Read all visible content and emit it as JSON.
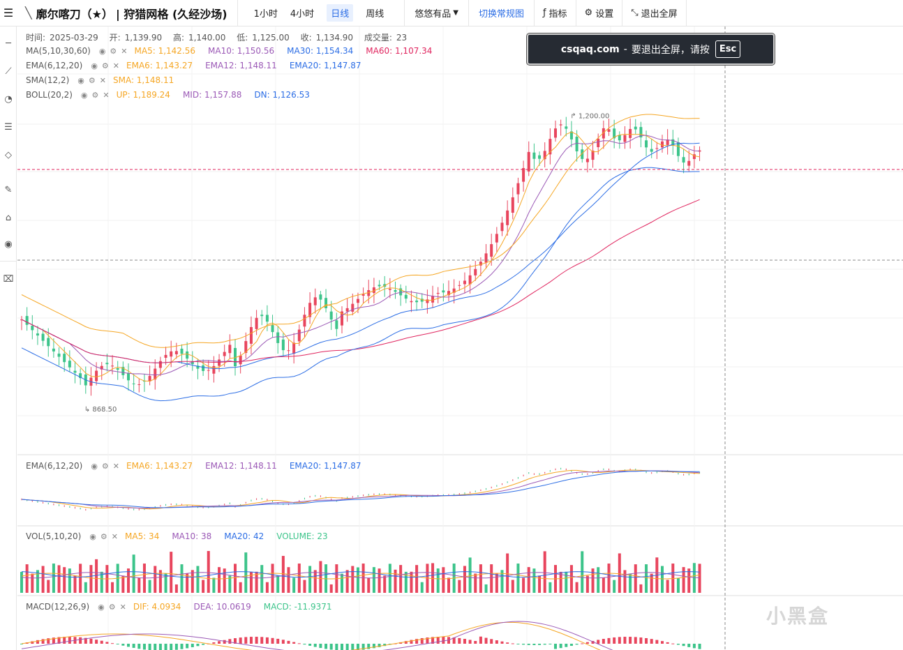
{
  "toolbar": {
    "menu_icon": "menu-icon",
    "item_name": "廓尔喀刀（★）",
    "item_sub": "| 狩猎网格 (久经沙场)",
    "periods": [
      "1小时",
      "4小时",
      "日线",
      "周线"
    ],
    "active_period": "日线",
    "platform": "悠悠有品",
    "switch_label": "切换常规图",
    "indicator_label": "指标",
    "settings_label": "设置",
    "exit_label": "退出全屏"
  },
  "info": {
    "time_label": "时间:",
    "time": "2025-03-29",
    "open_label": "开:",
    "open": "1,139.90",
    "high_label": "高:",
    "high": "1,140.00",
    "low_label": "低:",
    "low": "1,125.00",
    "close_label": "收:",
    "close": "1,134.90",
    "vol_label": "成交量:",
    "vol": "23"
  },
  "legends": {
    "ma": {
      "name": "MA(5,10,30,60)",
      "items": [
        {
          "text": "MA5: 1,142.56",
          "color": "#f5a623"
        },
        {
          "text": "MA10: 1,150.56",
          "color": "#9b59b6"
        },
        {
          "text": "MA30: 1,154.34",
          "color": "#2b6de5"
        },
        {
          "text": "MA60: 1,107.34",
          "color": "#e0245e"
        }
      ]
    },
    "ema": {
      "name": "EMA(6,12,20)",
      "items": [
        {
          "text": "EMA6: 1,143.27",
          "color": "#f5a623"
        },
        {
          "text": "EMA12: 1,148.11",
          "color": "#9b59b6"
        },
        {
          "text": "EMA20: 1,147.87",
          "color": "#2b6de5"
        }
      ]
    },
    "sma": {
      "name": "SMA(12,2)",
      "items": [
        {
          "text": "SMA: 1,148.11",
          "color": "#f5a623"
        }
      ]
    },
    "boll": {
      "name": "BOLL(20,2)",
      "items": [
        {
          "text": "UP: 1,189.24",
          "color": "#f5a623"
        },
        {
          "text": "MID: 1,157.88",
          "color": "#9b59b6"
        },
        {
          "text": "DN: 1,126.53",
          "color": "#2b6de5"
        }
      ]
    },
    "ema2": {
      "name": "EMA(6,12,20)",
      "items": [
        {
          "text": "EMA6: 1,143.27",
          "color": "#f5a623"
        },
        {
          "text": "EMA12: 1,148.11",
          "color": "#9b59b6"
        },
        {
          "text": "EMA20: 1,147.87",
          "color": "#2b6de5"
        }
      ]
    },
    "vol": {
      "name": "VOL(5,10,20)",
      "items": [
        {
          "text": "MA5: 34",
          "color": "#f5a623"
        },
        {
          "text": "MA10: 38",
          "color": "#9b59b6"
        },
        {
          "text": "MA20: 42",
          "color": "#2b6de5"
        },
        {
          "text": "VOLUME: 23",
          "color": "#3cc48a"
        }
      ]
    },
    "macd": {
      "name": "MACD(12,26,9)",
      "items": [
        {
          "text": "DIF: 4.0934",
          "color": "#f5a623"
        },
        {
          "text": "DEA: 10.0619",
          "color": "#9b59b6"
        },
        {
          "text": "MACD: -11.9371",
          "color": "#3cc48a"
        }
      ]
    }
  },
  "markers": {
    "high": "1,200.00",
    "low": "868.50"
  },
  "toast": {
    "site": "csqaq.com",
    "sep": "-",
    "text": "要退出全屏，请按",
    "key": "Esc"
  },
  "watermark": "小黑盒",
  "colors": {
    "up": "#e8455d",
    "down": "#3cc48a",
    "accent": "#2b6de5"
  }
}
